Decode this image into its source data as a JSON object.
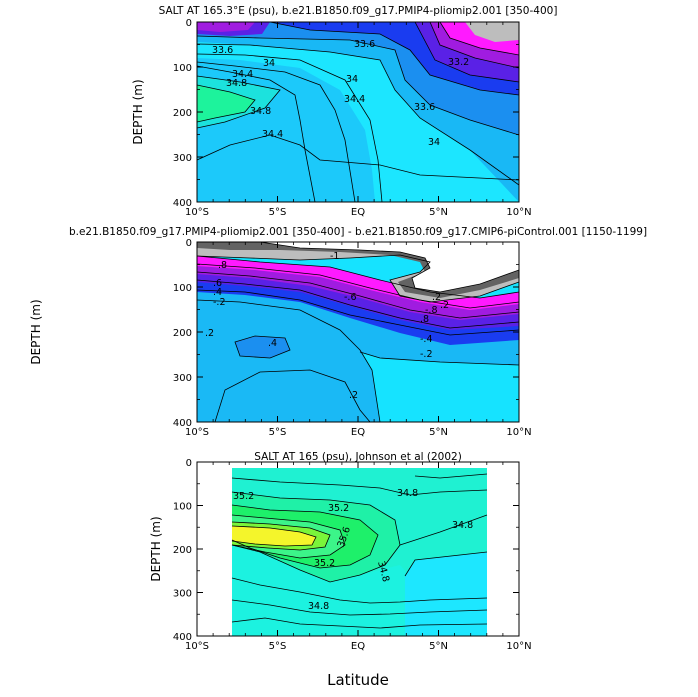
{
  "xlabel": "Latitude",
  "colors": {
    "cyan_deep": "#16e3ff",
    "cyan_light": "#1ce6ff",
    "sky": "#19b8f5",
    "blue_mid": "#1b8ff0",
    "blue": "#1a3cf0",
    "indigo": "#5a21e6",
    "violet": "#a01ce0",
    "magenta": "#ff1aff",
    "grey_light": "#bdbdbd",
    "grey_dark": "#636363",
    "green": "#1ef06a",
    "green_light": "#3cf589",
    "lime": "#7af53a",
    "yellow": "#f4f52b",
    "aqua": "#1df5c5",
    "teal": "#1ff1a7"
  },
  "chart_data": [
    {
      "type": "contour",
      "title": "SALT AT 165.3°E (psu), b.e21.B1850.f09_g17.PMIP4-pliomip2.001 [350-400]",
      "ylabel": "DEPTH (m)",
      "x_ticks": [
        "10°S",
        "5°S",
        "EQ",
        "5°N",
        "10°N"
      ],
      "x_range": [
        -10,
        10
      ],
      "y_ticks": [
        "0",
        "100",
        "200",
        "300",
        "400"
      ],
      "y_range": [
        0,
        400
      ],
      "contour_labels": [
        "33.6",
        "34",
        "34.4",
        "34.8",
        "34.8",
        "34.4",
        "33.6",
        "34",
        "34.4",
        "33.6",
        "34",
        "33.2"
      ]
    },
    {
      "type": "contour",
      "title": "b.e21.B1850.f09_g17.PMIP4-pliomip2.001 [350-400] - b.e21.B1850.f09_g17.CMIP6-piControl.001 [1150-1199]",
      "ylabel": "DEPTH (m)",
      "x_ticks": [
        "10°S",
        "5°S",
        "EQ",
        "5°N",
        "10°N"
      ],
      "x_range": [
        -10,
        10
      ],
      "y_ticks": [
        "0",
        "100",
        "200",
        "300",
        "400"
      ],
      "y_range": [
        0,
        400
      ],
      "contour_labels": [
        ".8",
        ".6",
        ".4",
        "-.2",
        ".2",
        ".4",
        ".2",
        "-1",
        "-.6",
        "-.8",
        ".8",
        "-.4",
        "-.2",
        ".2",
        ".2"
      ]
    },
    {
      "type": "contour",
      "title": "SALT AT 165 (psu), Johnson et al (2002)",
      "ylabel": "DEPTH (m)",
      "x_ticks": [
        "10°S",
        "5°S",
        "EQ",
        "5°N",
        "10°N"
      ],
      "x_range": [
        -10,
        10
      ],
      "y_ticks": [
        "0",
        "100",
        "200",
        "300",
        "400"
      ],
      "y_range": [
        0,
        400
      ],
      "data_extent_lat": [
        -8,
        8
      ],
      "data_extent_depth": [
        12,
        400
      ],
      "contour_labels": [
        "35.2",
        "35.2",
        "35.6",
        "35.2",
        "34.8",
        "34.8",
        "34.8",
        "34.8"
      ]
    }
  ]
}
